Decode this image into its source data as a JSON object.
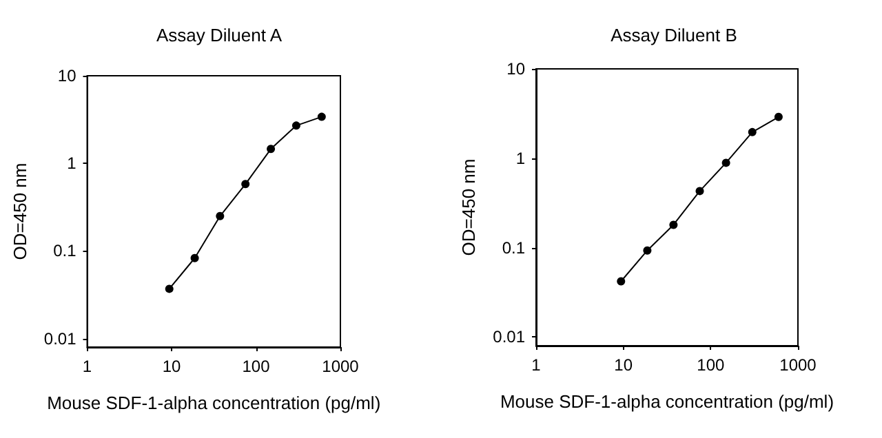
{
  "chart_data": [
    {
      "type": "line",
      "title": "Assay Diluent A",
      "xlabel": "Mouse SDF-1-alpha concentration (pg/ml)",
      "ylabel": "OD=450 nm",
      "x": [
        9.4,
        18.8,
        37.5,
        75,
        150,
        300,
        600
      ],
      "series": [
        {
          "color": "#000000",
          "values": [
            0.037,
            0.083,
            0.25,
            0.58,
            1.46,
            2.7,
            3.4
          ]
        }
      ],
      "xlim": [
        1,
        1000
      ],
      "xticks": [
        1,
        10,
        100,
        1000
      ],
      "ylim": [
        0.008,
        10
      ],
      "yticks": [
        0.01,
        0.1,
        1,
        10
      ],
      "log": "xy",
      "grid": false,
      "marker": "circle",
      "line_style": "solid"
    },
    {
      "type": "line",
      "title": "Assay Diluent B",
      "xlabel": "Mouse SDF-1-alpha concentration (pg/ml)",
      "ylabel": "OD=450 nm",
      "x": [
        9.4,
        18.8,
        37.5,
        75,
        150,
        300,
        600
      ],
      "series": [
        {
          "color": "#000000",
          "values": [
            0.042,
            0.093,
            0.18,
            0.43,
            0.89,
            1.96,
            2.9
          ]
        }
      ],
      "xlim": [
        1,
        1000
      ],
      "xticks": [
        1,
        10,
        100,
        1000
      ],
      "ylim": [
        0.008,
        10
      ],
      "yticks": [
        0.01,
        0.1,
        1,
        10
      ],
      "log": "xy",
      "grid": false,
      "marker": "circle",
      "line_style": "solid"
    }
  ]
}
